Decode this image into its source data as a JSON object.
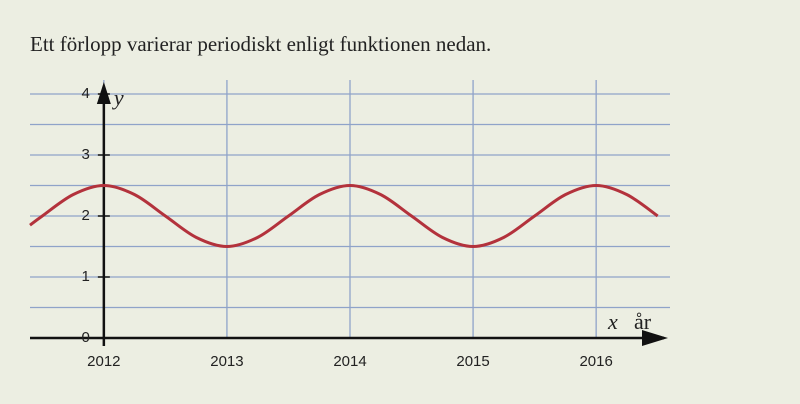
{
  "chart_data": {
    "type": "line",
    "title": "Ett förlopp varierar periodiskt enligt funktionen nedan.",
    "y_label": "y",
    "x_label": "x",
    "x_unit": "år",
    "x": [
      2011.4,
      2011.5,
      2011.75,
      2012,
      2012.25,
      2012.5,
      2012.75,
      2013,
      2013.25,
      2013.5,
      2013.75,
      2014,
      2014.25,
      2014.5,
      2014.75,
      2015,
      2015.25,
      2015.5,
      2015.75,
      2016,
      2016.25,
      2016.5
    ],
    "values": [
      1.85,
      2,
      2.35,
      2.5,
      2.35,
      2,
      1.65,
      1.5,
      1.65,
      2,
      2.35,
      2.5,
      2.35,
      2,
      1.65,
      1.5,
      1.65,
      2,
      2.35,
      2.5,
      2.35,
      2
    ],
    "color": "#b3323c",
    "xlim": [
      2011.4,
      2016.6
    ],
    "xticks": [
      2012,
      2013,
      2014,
      2015,
      2016
    ],
    "ylim": [
      0,
      4
    ],
    "yticks": [
      0,
      1,
      2,
      3,
      4
    ],
    "y_gridlines": [
      0.5,
      1,
      1.5,
      2,
      2.5,
      3,
      3.5,
      4
    ],
    "grid": true
  }
}
